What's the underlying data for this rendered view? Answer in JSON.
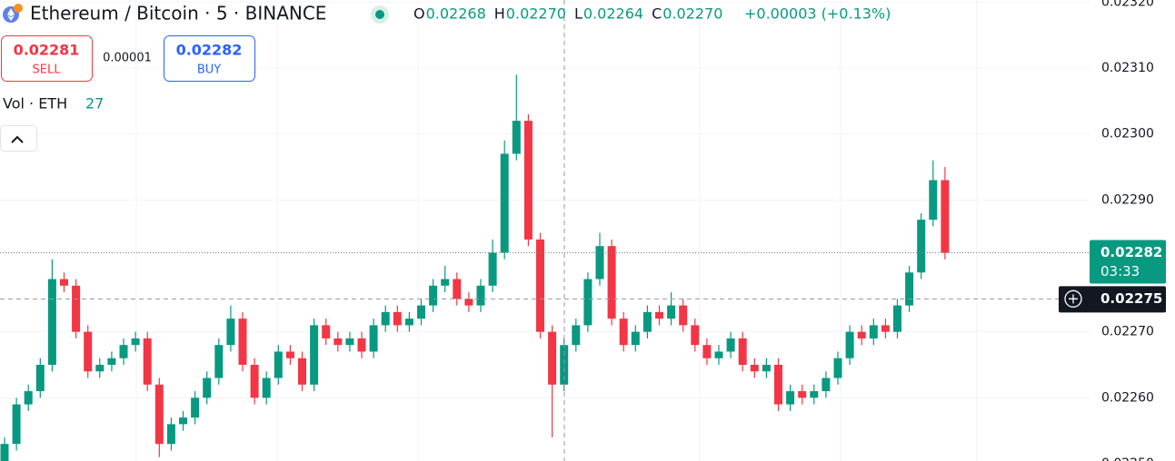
{
  "header": {
    "symbol": "Ethereum / Bitcoin · 5 · BINANCE",
    "ohlc": [
      {
        "label": "O",
        "value": "0.02268"
      },
      {
        "label": "H",
        "value": "0.02270"
      },
      {
        "label": "L",
        "value": "0.02264"
      },
      {
        "label": "C",
        "value": "0.02270"
      }
    ],
    "change": "+0.00003 (+0.13%)"
  },
  "trade": {
    "sell_price": "0.02281",
    "sell_label": "SELL",
    "spread": "0.00001",
    "buy_price": "0.02282",
    "buy_label": "BUY"
  },
  "volume": {
    "label": "Vol · ETH",
    "value": "27"
  },
  "price_tags": {
    "last_price": 0.02282,
    "last_price_label": "0.02282",
    "countdown": "03:33",
    "crosshair_price": 0.02275,
    "crosshair_label": "0.02275"
  },
  "chart_data": {
    "type": "candlestick",
    "up_color": "#089981",
    "down_color": "#f23645",
    "ylim": [
      0.0225,
      0.0232
    ],
    "yticks": [
      {
        "value": 0.0225,
        "label": "0.02250"
      },
      {
        "value": 0.0226,
        "label": "0.02260"
      },
      {
        "value": 0.0227,
        "label": "0.02270"
      },
      {
        "value": 0.0229,
        "label": "0.02290"
      },
      {
        "value": 0.023,
        "label": "0.02300"
      },
      {
        "value": 0.0231,
        "label": "0.02310"
      },
      {
        "value": 0.0232,
        "label": "0.02320"
      }
    ],
    "grid": true,
    "open": [
      0.02249,
      0.02253,
      0.02259,
      0.02261,
      0.02265,
      0.02278,
      0.02277,
      0.0227,
      0.02264,
      0.02265,
      0.02266,
      0.02268,
      0.02269,
      0.02262,
      0.02253,
      0.02256,
      0.02257,
      0.0226,
      0.02263,
      0.02268,
      0.02272,
      0.02265,
      0.0226,
      0.02263,
      0.02267,
      0.02266,
      0.02262,
      0.02271,
      0.02269,
      0.02268,
      0.02269,
      0.02267,
      0.02271,
      0.02273,
      0.02271,
      0.02272,
      0.02274,
      0.02277,
      0.02278,
      0.02275,
      0.02274,
      0.02277,
      0.02282,
      0.02297,
      0.02302,
      0.02284,
      0.0227,
      0.02262,
      0.02268,
      0.02271,
      0.02278,
      0.02283,
      0.02272,
      0.02268,
      0.0227,
      0.02273,
      0.02272,
      0.02274,
      0.02271,
      0.02268,
      0.02266,
      0.02267,
      0.02269,
      0.02265,
      0.02264,
      0.02265,
      0.02259,
      0.02261,
      0.0226,
      0.02261,
      0.02263,
      0.02266,
      0.0227,
      0.02269,
      0.02271,
      0.0227,
      0.02274,
      0.02279,
      0.02287,
      0.02293
    ],
    "high": [
      0.02254,
      0.0226,
      0.02262,
      0.02266,
      0.02281,
      0.02279,
      0.02278,
      0.02271,
      0.02266,
      0.02267,
      0.02269,
      0.0227,
      0.0227,
      0.02263,
      0.02257,
      0.02258,
      0.02261,
      0.02264,
      0.02269,
      0.02274,
      0.02273,
      0.02266,
      0.02264,
      0.02268,
      0.02268,
      0.02267,
      0.02272,
      0.02272,
      0.0227,
      0.0227,
      0.0227,
      0.02272,
      0.02274,
      0.02274,
      0.02273,
      0.02275,
      0.02278,
      0.0228,
      0.02279,
      0.02276,
      0.02278,
      0.02284,
      0.02299,
      0.02309,
      0.02303,
      0.02285,
      0.02271,
      0.02269,
      0.02272,
      0.02279,
      0.02285,
      0.02284,
      0.02273,
      0.02271,
      0.02274,
      0.02274,
      0.02276,
      0.02275,
      0.02272,
      0.02269,
      0.02268,
      0.0227,
      0.0227,
      0.02266,
      0.02266,
      0.02266,
      0.02262,
      0.02262,
      0.02262,
      0.02264,
      0.02267,
      0.02271,
      0.02271,
      0.02272,
      0.02272,
      0.02275,
      0.0228,
      0.02288,
      0.02296,
      0.02295
    ],
    "low": [
      0.02248,
      0.02252,
      0.02258,
      0.0226,
      0.02264,
      0.02276,
      0.02269,
      0.02263,
      0.02263,
      0.02264,
      0.02265,
      0.02267,
      0.02261,
      0.02251,
      0.02252,
      0.02255,
      0.02256,
      0.02259,
      0.02262,
      0.02267,
      0.02264,
      0.02259,
      0.02259,
      0.02262,
      0.02265,
      0.02261,
      0.02261,
      0.02268,
      0.02267,
      0.02267,
      0.02266,
      0.02266,
      0.0227,
      0.0227,
      0.0227,
      0.02271,
      0.02273,
      0.02276,
      0.02274,
      0.02273,
      0.02273,
      0.02276,
      0.02281,
      0.02296,
      0.02283,
      0.02269,
      0.02254,
      0.02261,
      0.02267,
      0.0227,
      0.02277,
      0.02271,
      0.02267,
      0.02267,
      0.02269,
      0.02271,
      0.02271,
      0.0227,
      0.02267,
      0.02265,
      0.02265,
      0.02266,
      0.02264,
      0.02263,
      0.02263,
      0.02258,
      0.02258,
      0.02259,
      0.02259,
      0.0226,
      0.02262,
      0.02265,
      0.02268,
      0.02268,
      0.02269,
      0.02269,
      0.02273,
      0.02278,
      0.02286,
      0.02281
    ],
    "close": [
      0.02253,
      0.02259,
      0.02261,
      0.02265,
      0.02278,
      0.02277,
      0.0227,
      0.02264,
      0.02265,
      0.02266,
      0.02268,
      0.02269,
      0.02262,
      0.02253,
      0.02256,
      0.02257,
      0.0226,
      0.02263,
      0.02268,
      0.02272,
      0.02265,
      0.0226,
      0.02263,
      0.02267,
      0.02266,
      0.02262,
      0.02271,
      0.02269,
      0.02268,
      0.02269,
      0.02267,
      0.02271,
      0.02273,
      0.02271,
      0.02272,
      0.02274,
      0.02277,
      0.02278,
      0.02275,
      0.02274,
      0.02277,
      0.02282,
      0.02297,
      0.02302,
      0.02284,
      0.0227,
      0.02262,
      0.02268,
      0.02271,
      0.02278,
      0.02283,
      0.02272,
      0.02268,
      0.0227,
      0.02273,
      0.02272,
      0.02274,
      0.02271,
      0.02268,
      0.02266,
      0.02267,
      0.02269,
      0.02265,
      0.02264,
      0.02265,
      0.02259,
      0.02261,
      0.0226,
      0.02261,
      0.02263,
      0.02266,
      0.0227,
      0.02269,
      0.02271,
      0.0227,
      0.02274,
      0.02279,
      0.02287,
      0.02293,
      0.02282
    ]
  }
}
